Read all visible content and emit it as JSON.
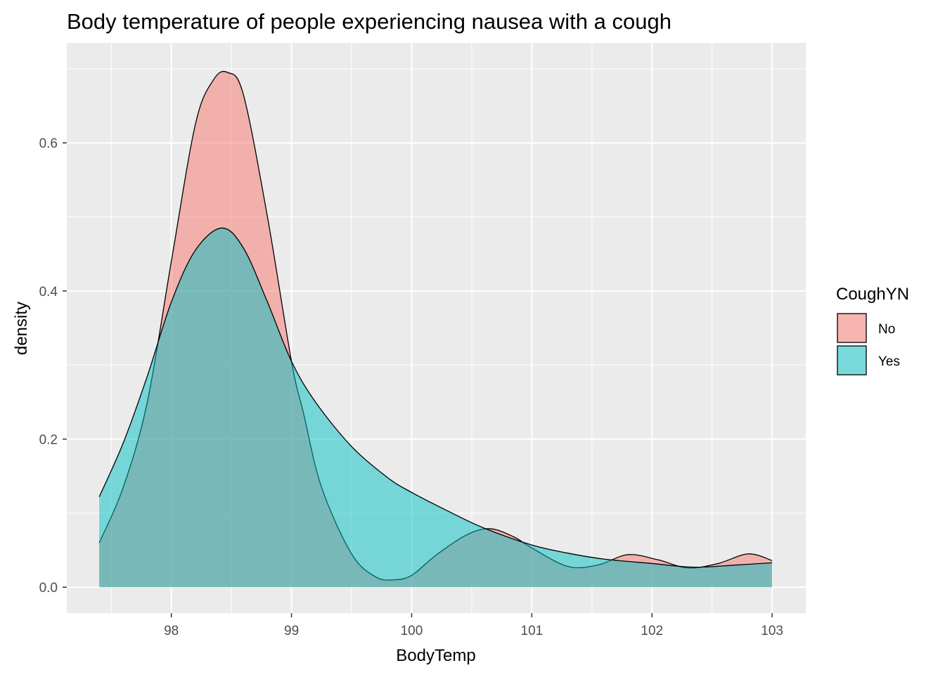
{
  "chart_data": {
    "type": "area",
    "title": "Body temperature of people experiencing nausea with a cough",
    "xlabel": "BodyTemp",
    "ylabel": "density",
    "xlim": [
      97.13,
      103.28
    ],
    "ylim": [
      -0.035,
      0.735
    ],
    "x_ticks": [
      "98",
      "99",
      "100",
      "101",
      "102",
      "103"
    ],
    "x_tick_values": [
      98,
      99,
      100,
      101,
      102,
      103
    ],
    "y_ticks": [
      "0.0",
      "0.2",
      "0.4",
      "0.6"
    ],
    "y_tick_values": [
      0,
      0.2,
      0.4,
      0.6
    ],
    "grid": true,
    "legend": {
      "title": "CoughYN",
      "position": "right"
    },
    "series": [
      {
        "name": "No",
        "color": "#F8766D",
        "x": [
          97.4,
          97.6,
          97.8,
          98.0,
          98.2,
          98.35,
          98.47,
          98.6,
          98.8,
          99.0,
          99.1,
          99.25,
          99.5,
          99.7,
          99.85,
          100.0,
          100.2,
          100.45,
          100.65,
          100.85,
          101.0,
          101.3,
          101.55,
          101.8,
          102.05,
          102.3,
          102.55,
          102.8,
          103.0
        ],
        "y": [
          0.06,
          0.135,
          0.25,
          0.44,
          0.625,
          0.685,
          0.695,
          0.665,
          0.5,
          0.305,
          0.235,
          0.135,
          0.045,
          0.014,
          0.01,
          0.016,
          0.043,
          0.07,
          0.079,
          0.068,
          0.053,
          0.028,
          0.03,
          0.044,
          0.037,
          0.026,
          0.032,
          0.045,
          0.036
        ]
      },
      {
        "name": "Yes",
        "color": "#00BFC4",
        "x": [
          97.4,
          97.6,
          97.8,
          98.0,
          98.2,
          98.42,
          98.6,
          98.8,
          99.0,
          99.2,
          99.5,
          99.8,
          100.0,
          100.3,
          100.6,
          101.0,
          101.3,
          101.6,
          102.0,
          102.35,
          102.7,
          103.0
        ],
        "y": [
          0.122,
          0.195,
          0.285,
          0.385,
          0.455,
          0.485,
          0.458,
          0.385,
          0.305,
          0.25,
          0.19,
          0.148,
          0.128,
          0.103,
          0.08,
          0.057,
          0.046,
          0.038,
          0.032,
          0.027,
          0.03,
          0.033
        ]
      }
    ]
  }
}
